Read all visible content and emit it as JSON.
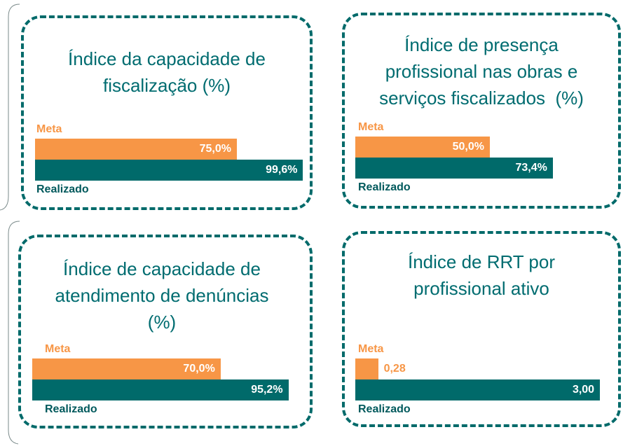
{
  "chart_data": [
    {
      "type": "bar",
      "title": "Índice da capacidade de fiscalização (%)",
      "categories": [
        "Meta",
        "Realizado"
      ],
      "values": [
        75.0,
        99.6
      ],
      "value_labels": [
        "75,0%",
        "99,6%"
      ],
      "colors": [
        "#f79646",
        "#006a6a"
      ],
      "xlim": [
        0,
        100
      ]
    },
    {
      "type": "bar",
      "title": "Índice de presença profissional nas obras e serviços fiscalizados  (%)",
      "categories": [
        "Meta",
        "Realizado"
      ],
      "values": [
        50.0,
        73.4
      ],
      "value_labels": [
        "50,0%",
        "73,4%"
      ],
      "colors": [
        "#f79646",
        "#006a6a"
      ],
      "xlim": [
        0,
        100
      ]
    },
    {
      "type": "bar",
      "title": "Índice de capacidade de atendimento de denúncias  (%)",
      "categories": [
        "Meta",
        "Realizado"
      ],
      "values": [
        70.0,
        95.2
      ],
      "value_labels": [
        "70,0%",
        "95,2%"
      ],
      "colors": [
        "#f79646",
        "#006a6a"
      ],
      "xlim": [
        0,
        100
      ]
    },
    {
      "type": "bar",
      "title": "Índice de RRT por profissional ativo",
      "categories": [
        "Meta",
        "Realizado"
      ],
      "values": [
        0.28,
        3.0
      ],
      "value_labels": [
        "0,28",
        "3,00"
      ],
      "colors": [
        "#f79646",
        "#006a6a"
      ],
      "xlim": [
        0,
        3.3
      ]
    }
  ]
}
